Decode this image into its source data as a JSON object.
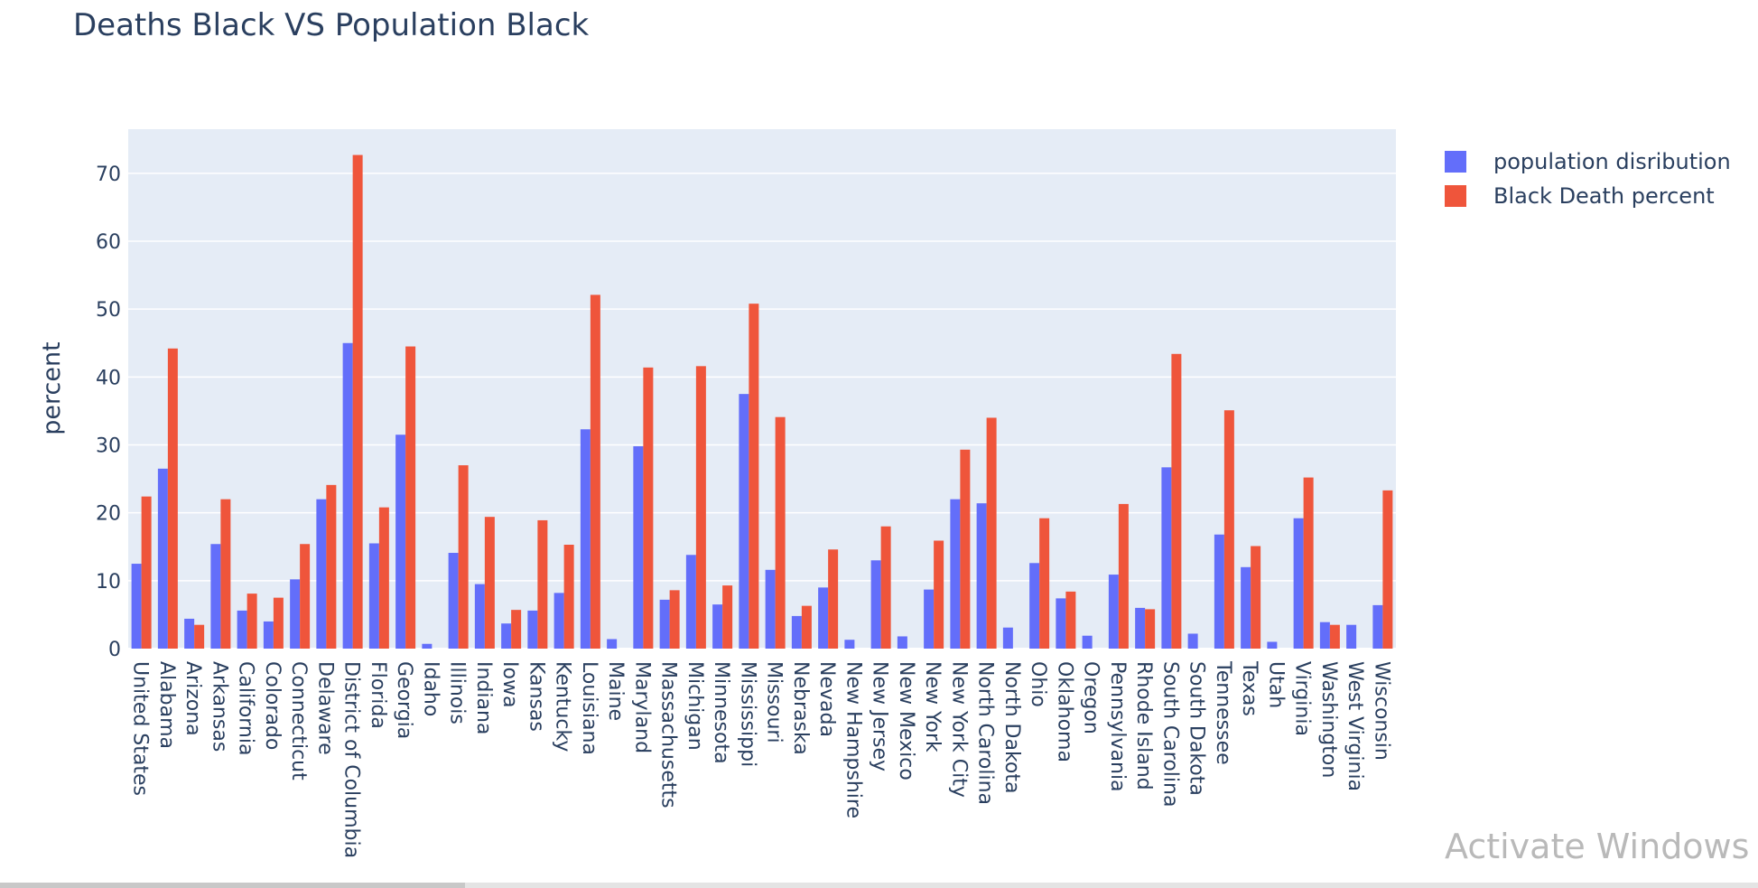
{
  "chart_data": {
    "type": "bar",
    "title": "Deaths Black VS Population Black",
    "xlabel": "",
    "ylabel": "percent",
    "ylim": [
      0,
      76.5
    ],
    "yticks": [
      0,
      10,
      20,
      30,
      40,
      50,
      60,
      70
    ],
    "grid": true,
    "legend_position": "top-right",
    "categories": [
      "United States",
      "Alabama",
      "Arizona",
      "Arkansas",
      "California",
      "Colorado",
      "Connecticut",
      "Delaware",
      "District of Columbia",
      "Florida",
      "Georgia",
      "Idaho",
      "Illinois",
      "Indiana",
      "Iowa",
      "Kansas",
      "Kentucky",
      "Louisiana",
      "Maine",
      "Maryland",
      "Massachusetts",
      "Michigan",
      "Minnesota",
      "Mississippi",
      "Missouri",
      "Nebraska",
      "Nevada",
      "New Hampshire",
      "New Jersey",
      "New Mexico",
      "New York",
      "New York City",
      "North Carolina",
      "North Dakota",
      "Ohio",
      "Oklahoma",
      "Oregon",
      "Pennsylvania",
      "Rhode Island",
      "South Carolina",
      "South Dakota",
      "Tennessee",
      "Texas",
      "Utah",
      "Virginia",
      "Washington",
      "West Virginia",
      "Wisconsin"
    ],
    "series": [
      {
        "name": "population disribution",
        "color": "#636efa",
        "values": [
          12.5,
          26.5,
          4.4,
          15.4,
          5.6,
          4.0,
          10.2,
          22.0,
          45.0,
          15.5,
          31.5,
          0.7,
          14.1,
          9.5,
          3.7,
          5.6,
          8.2,
          32.3,
          1.4,
          29.8,
          7.2,
          13.8,
          6.5,
          37.5,
          11.6,
          4.8,
          9.0,
          1.3,
          13.0,
          1.8,
          8.7,
          22.0,
          21.4,
          3.1,
          12.6,
          7.4,
          1.9,
          10.9,
          6.0,
          26.7,
          2.2,
          16.8,
          12.0,
          1.0,
          19.2,
          3.9,
          3.5,
          6.4
        ]
      },
      {
        "name": "Black Death percent",
        "color": "#ef553b",
        "values": [
          22.4,
          44.2,
          3.5,
          22.0,
          8.1,
          7.5,
          15.4,
          24.1,
          72.7,
          20.8,
          44.5,
          0,
          27.0,
          19.4,
          5.7,
          18.9,
          15.3,
          52.1,
          0,
          41.4,
          8.6,
          41.6,
          9.3,
          50.8,
          34.1,
          6.3,
          14.6,
          0,
          18.0,
          0,
          15.9,
          29.3,
          34.0,
          0,
          19.2,
          8.4,
          0,
          21.3,
          5.8,
          43.4,
          0,
          35.1,
          15.1,
          0,
          25.2,
          3.5,
          0,
          23.3
        ]
      }
    ]
  },
  "overlay": {
    "watermark": "Activate Windows"
  }
}
